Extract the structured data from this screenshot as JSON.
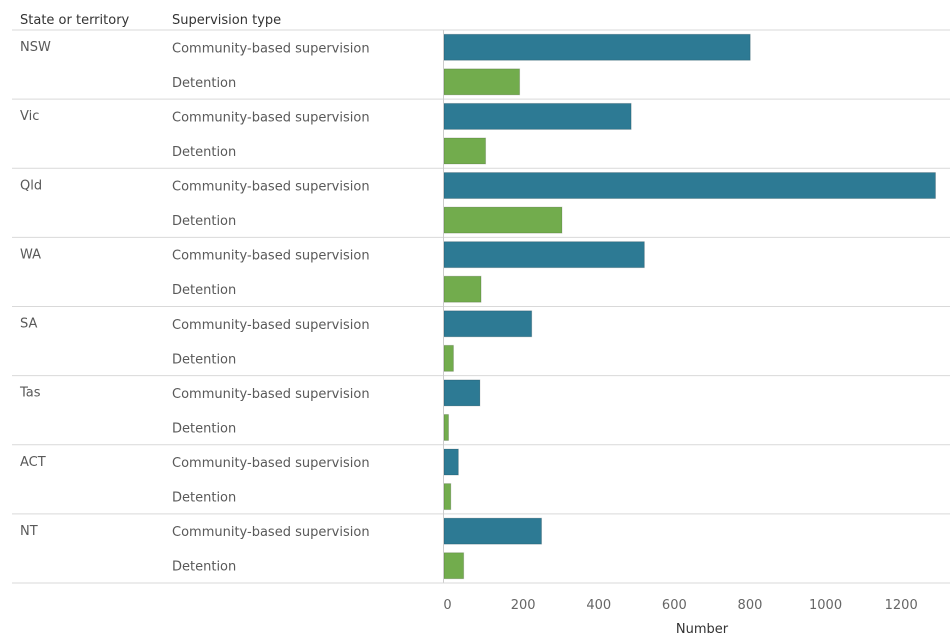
{
  "chart_data": {
    "type": "bar",
    "orientation": "horizontal",
    "column_headers": [
      "State or territory",
      "Supervision type"
    ],
    "xlabel": "Number",
    "xlim": [
      0,
      1300
    ],
    "xticks": [
      0,
      200,
      400,
      600,
      800,
      1000,
      1200
    ],
    "grid": false,
    "legend": "none",
    "colors": {
      "Community-based supervision": "#2d7a94",
      "Detention": "#72ac4d"
    },
    "groups": [
      {
        "state": "NSW",
        "bars": [
          {
            "type": "Community-based supervision",
            "value": 810
          },
          {
            "type": "Detention",
            "value": 200
          }
        ]
      },
      {
        "state": "Vic",
        "bars": [
          {
            "type": "Community-based supervision",
            "value": 495
          },
          {
            "type": "Detention",
            "value": 110
          }
        ]
      },
      {
        "state": "Qld",
        "bars": [
          {
            "type": "Community-based supervision",
            "value": 1300
          },
          {
            "type": "Detention",
            "value": 312
          }
        ]
      },
      {
        "state": "WA",
        "bars": [
          {
            "type": "Community-based supervision",
            "value": 530
          },
          {
            "type": "Detention",
            "value": 98
          }
        ]
      },
      {
        "state": "SA",
        "bars": [
          {
            "type": "Community-based supervision",
            "value": 232
          },
          {
            "type": "Detention",
            "value": 25
          }
        ]
      },
      {
        "state": "Tas",
        "bars": [
          {
            "type": "Community-based supervision",
            "value": 95
          },
          {
            "type": "Detention",
            "value": 12
          }
        ]
      },
      {
        "state": "ACT",
        "bars": [
          {
            "type": "Community-based supervision",
            "value": 38
          },
          {
            "type": "Detention",
            "value": 18
          }
        ]
      },
      {
        "state": "NT",
        "bars": [
          {
            "type": "Community-based supervision",
            "value": 258
          },
          {
            "type": "Detention",
            "value": 52
          }
        ]
      }
    ]
  }
}
